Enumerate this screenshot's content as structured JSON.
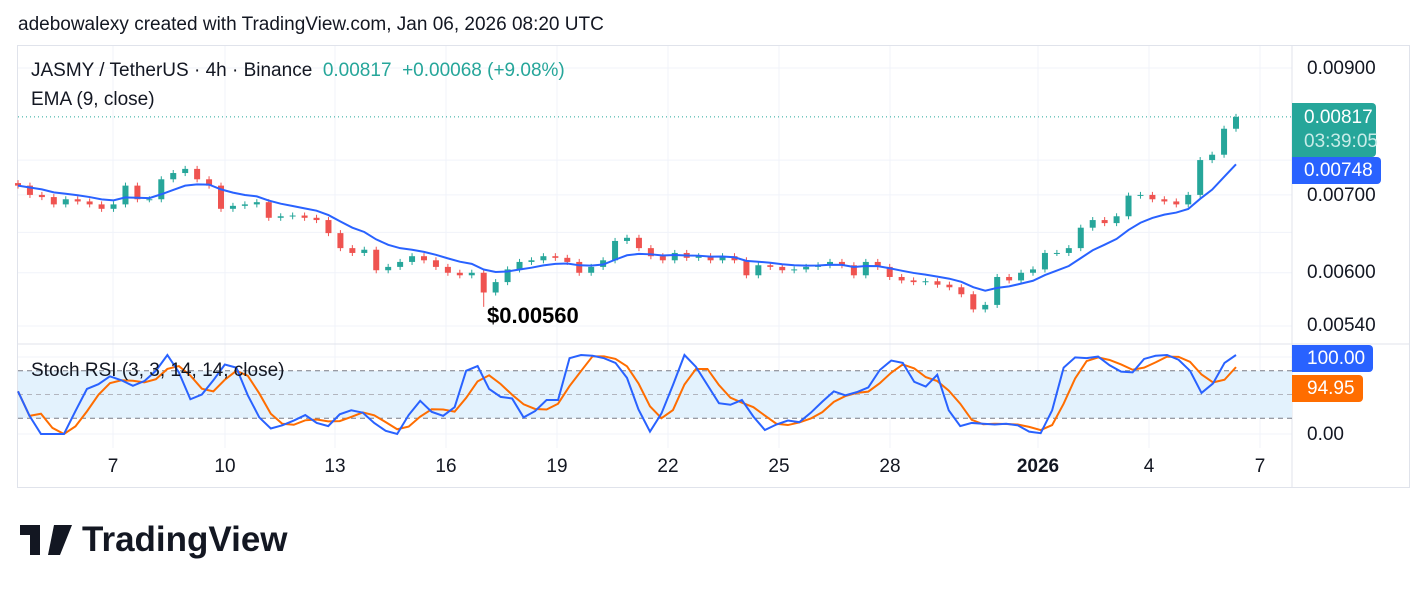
{
  "credit": "adebowalexy created with TradingView.com, Jan 06, 2026 08:20 UTC",
  "legend": {
    "symbol": "JASMY / TetherUS · 4h · Binance",
    "price": "0.00817",
    "change": "+0.00068 (+9.08%)",
    "ema": "EMA (9, close)",
    "stoch": "Stoch RSI (3, 3, 14, 14, close)"
  },
  "tags": {
    "last_price": "0.00817",
    "countdown": "03:39:05",
    "ema_value": "0.00748",
    "k_value": "100.00",
    "d_value": "94.95"
  },
  "annotation": "$0.00560",
  "logo_text": "TradingView",
  "colors": {
    "up": "#26a69a",
    "down": "#ef5350",
    "ema": "#2962ff",
    "k": "#2962ff",
    "d": "#ff6d00",
    "band": "#e3f2fd"
  },
  "chart_data": [
    {
      "type": "candlestick",
      "scale": "log",
      "price_ticks": [
        "0.00900",
        "0.00700",
        "0.00600",
        "0.00540"
      ],
      "date_ticks": [
        "7",
        "10",
        "13",
        "16",
        "19",
        "22",
        "25",
        "28",
        "2026",
        "4",
        "7"
      ],
      "closes": [
        0.00713,
        0.007,
        0.00697,
        0.00687,
        0.00694,
        0.00691,
        0.00687,
        0.00681,
        0.00687,
        0.00713,
        0.00694,
        0.00694,
        0.00722,
        0.00731,
        0.00737,
        0.00722,
        0.00713,
        0.00681,
        0.00685,
        0.00687,
        0.0069,
        0.00669,
        0.00671,
        0.00672,
        0.00669,
        0.00666,
        0.00649,
        0.0063,
        0.00624,
        0.00628,
        0.00603,
        0.00607,
        0.00613,
        0.0062,
        0.00615,
        0.00607,
        0.006,
        0.00597,
        0.006,
        0.00577,
        0.00589,
        0.00604,
        0.00613,
        0.00615,
        0.0062,
        0.00618,
        0.00613,
        0.006,
        0.00607,
        0.00615,
        0.00639,
        0.00643,
        0.0063,
        0.0062,
        0.00615,
        0.00624,
        0.00618,
        0.0062,
        0.00615,
        0.0062,
        0.00615,
        0.00597,
        0.00609,
        0.00607,
        0.00603,
        0.00604,
        0.00607,
        0.00609,
        0.00613,
        0.00609,
        0.00597,
        0.00613,
        0.00607,
        0.00595,
        0.00591,
        0.00589,
        0.0059,
        0.00586,
        0.00583,
        0.00575,
        0.00558,
        0.00563,
        0.00595,
        0.00591,
        0.006,
        0.00604,
        0.00624,
        0.00624,
        0.0063,
        0.00656,
        0.00666,
        0.00662,
        0.00671,
        0.00699,
        0.007,
        0.00694,
        0.00691,
        0.00687,
        0.007,
        0.0075,
        0.00758,
        0.00798,
        0.00817
      ],
      "ema_period": 9
    },
    {
      "type": "line",
      "title": "Stoch RSI (3, 3, 14, 14, close)",
      "ylim": [
        0,
        100
      ],
      "y_ticks": [
        "0.00"
      ],
      "bands": [
        20,
        50,
        80
      ],
      "k": [
        54,
        23,
        0,
        0,
        0,
        29,
        57,
        63,
        73,
        68,
        61,
        67,
        80,
        100,
        78,
        44,
        50,
        68,
        88,
        84,
        49,
        21,
        7,
        11,
        17,
        24,
        14,
        10,
        25,
        30,
        27,
        14,
        4,
        0,
        24,
        42,
        28,
        23,
        34,
        80,
        86,
        57,
        47,
        45,
        21,
        29,
        43,
        43,
        96,
        100,
        99,
        96,
        90,
        71,
        31,
        3,
        26,
        62,
        100,
        85,
        62,
        39,
        37,
        43,
        22,
        5,
        12,
        17,
        15,
        27,
        41,
        54,
        49,
        53,
        59,
        81,
        93,
        90,
        66,
        60,
        75,
        30,
        10,
        14,
        13,
        12,
        13,
        11,
        3,
        1,
        30,
        84,
        97,
        96,
        98,
        87,
        79,
        78,
        95,
        99,
        100,
        94,
        80,
        52,
        64,
        90,
        100
      ]
    }
  ]
}
